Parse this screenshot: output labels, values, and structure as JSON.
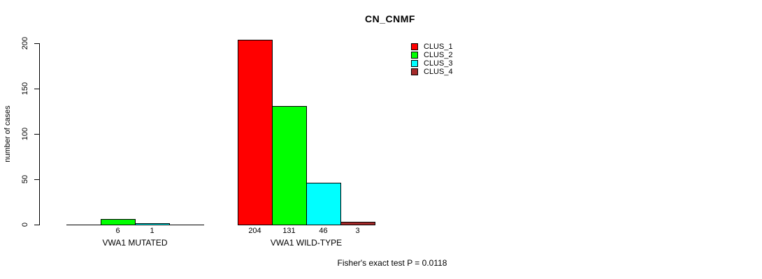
{
  "chart_data": {
    "type": "bar",
    "title": "CN_CNMF",
    "ylabel": "number of cases",
    "xlabel": "",
    "yticks": [
      0,
      50,
      100,
      150,
      200
    ],
    "ylim": [
      0,
      204
    ],
    "grid": false,
    "legend_position": "top-right",
    "categories": [
      "VWA1 MUTATED",
      "VWA1 WILD-TYPE"
    ],
    "series": [
      {
        "name": "CLUS_1",
        "color": "#FF0000",
        "values": [
          0,
          204
        ]
      },
      {
        "name": "CLUS_2",
        "color": "#00FF00",
        "values": [
          6,
          131
        ]
      },
      {
        "name": "CLUS_3",
        "color": "#00FFFF",
        "values": [
          1,
          46
        ]
      },
      {
        "name": "CLUS_4",
        "color": "#A52A2A",
        "values": [
          0,
          3
        ]
      }
    ],
    "bar_value_labels": [
      "6",
      "1",
      "204",
      "131",
      "46",
      "3"
    ],
    "footnote": "Fisher's exact test P = 0.0118"
  }
}
